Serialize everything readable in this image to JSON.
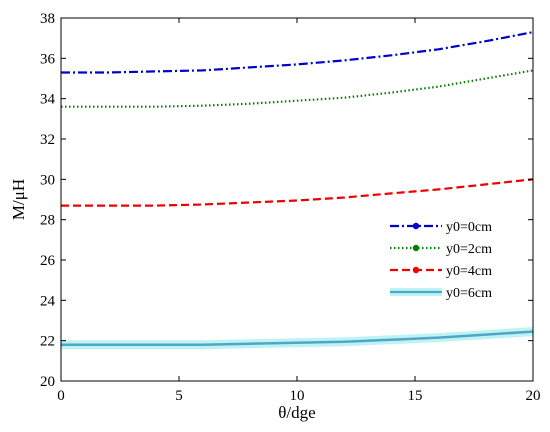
{
  "chart_data": {
    "type": "line",
    "title": "",
    "xlabel": "θ/dge",
    "ylabel": "M/μH",
    "xlim": [
      0,
      20
    ],
    "ylim": [
      20,
      38
    ],
    "xticks": [
      0,
      5,
      10,
      15,
      20
    ],
    "yticks": [
      20,
      22,
      24,
      26,
      28,
      30,
      32,
      34,
      36,
      38
    ],
    "grid": false,
    "legend_position": "right",
    "x": [
      0,
      2,
      4,
      6,
      8,
      10,
      12,
      14,
      16,
      18,
      20
    ],
    "series": [
      {
        "name": "y0=0cm",
        "color": "#0000cc",
        "style": "dashdot",
        "marker": "circle",
        "values": [
          35.3,
          35.3,
          35.35,
          35.4,
          35.55,
          35.7,
          35.9,
          36.15,
          36.45,
          36.85,
          37.3
        ]
      },
      {
        "name": "y0=2cm",
        "color": "#008000",
        "style": "dotted",
        "marker": "circle",
        "values": [
          33.6,
          33.6,
          33.6,
          33.65,
          33.75,
          33.9,
          34.05,
          34.3,
          34.6,
          35.0,
          35.4
        ]
      },
      {
        "name": "y0=4cm",
        "color": "#ee0000",
        "style": "dashed",
        "marker": "circle",
        "values": [
          28.7,
          28.7,
          28.7,
          28.75,
          28.85,
          28.95,
          29.1,
          29.3,
          29.5,
          29.75,
          30.0
        ]
      },
      {
        "name": "y0=6cm",
        "color": "#4fa7c7",
        "style": "solid",
        "marker": "none",
        "values": [
          21.8,
          21.8,
          21.8,
          21.8,
          21.85,
          21.9,
          21.95,
          22.05,
          22.15,
          22.3,
          22.45
        ]
      }
    ]
  }
}
